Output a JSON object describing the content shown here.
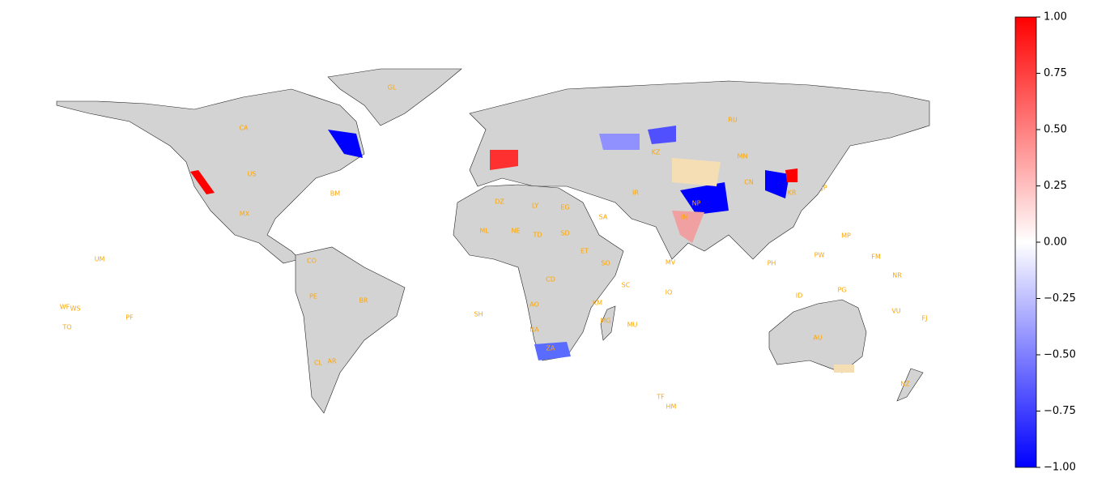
{
  "map": {
    "country_labels": [
      "GL",
      "CA",
      "US",
      "RU",
      "BM",
      "MX",
      "UM",
      "WF",
      "WS",
      "TO",
      "PF",
      "SH",
      "BR",
      "AU",
      "NZ",
      "TF",
      "HM",
      "SC",
      "IO",
      "MV",
      "MU",
      "KM",
      "MP",
      "PW",
      "FM",
      "NR",
      "VU",
      "FJ",
      "NP",
      "IN",
      "CN",
      "MN",
      "ML",
      "NE",
      "TD",
      "SD",
      "LY",
      "DZ",
      "EG",
      "SA",
      "KZ",
      "AR",
      "CL",
      "PE",
      "CO",
      "ZA",
      "MG",
      "NA",
      "AO",
      "CD",
      "ET",
      "SO",
      "PH",
      "ID",
      "PG",
      "JP",
      "KR",
      "IR"
    ],
    "colorbar": {
      "lim": [
        -1,
        1
      ],
      "colors": [
        "#0000ff",
        "#ffffff",
        "#ff0000"
      ],
      "ticks": [
        {
          "value": 1,
          "label": "1.00"
        },
        {
          "value": 0.75,
          "label": "0.75"
        },
        {
          "value": 0.5,
          "label": "0.50"
        },
        {
          "value": 0.25,
          "label": "0.25"
        },
        {
          "value": 0,
          "label": "0.00"
        },
        {
          "value": -0.25,
          "label": "−0.25"
        },
        {
          "value": -0.5,
          "label": "−0.50"
        },
        {
          "value": -0.75,
          "label": "−0.75"
        },
        {
          "value": -1,
          "label": "−1.00"
        }
      ]
    }
  }
}
